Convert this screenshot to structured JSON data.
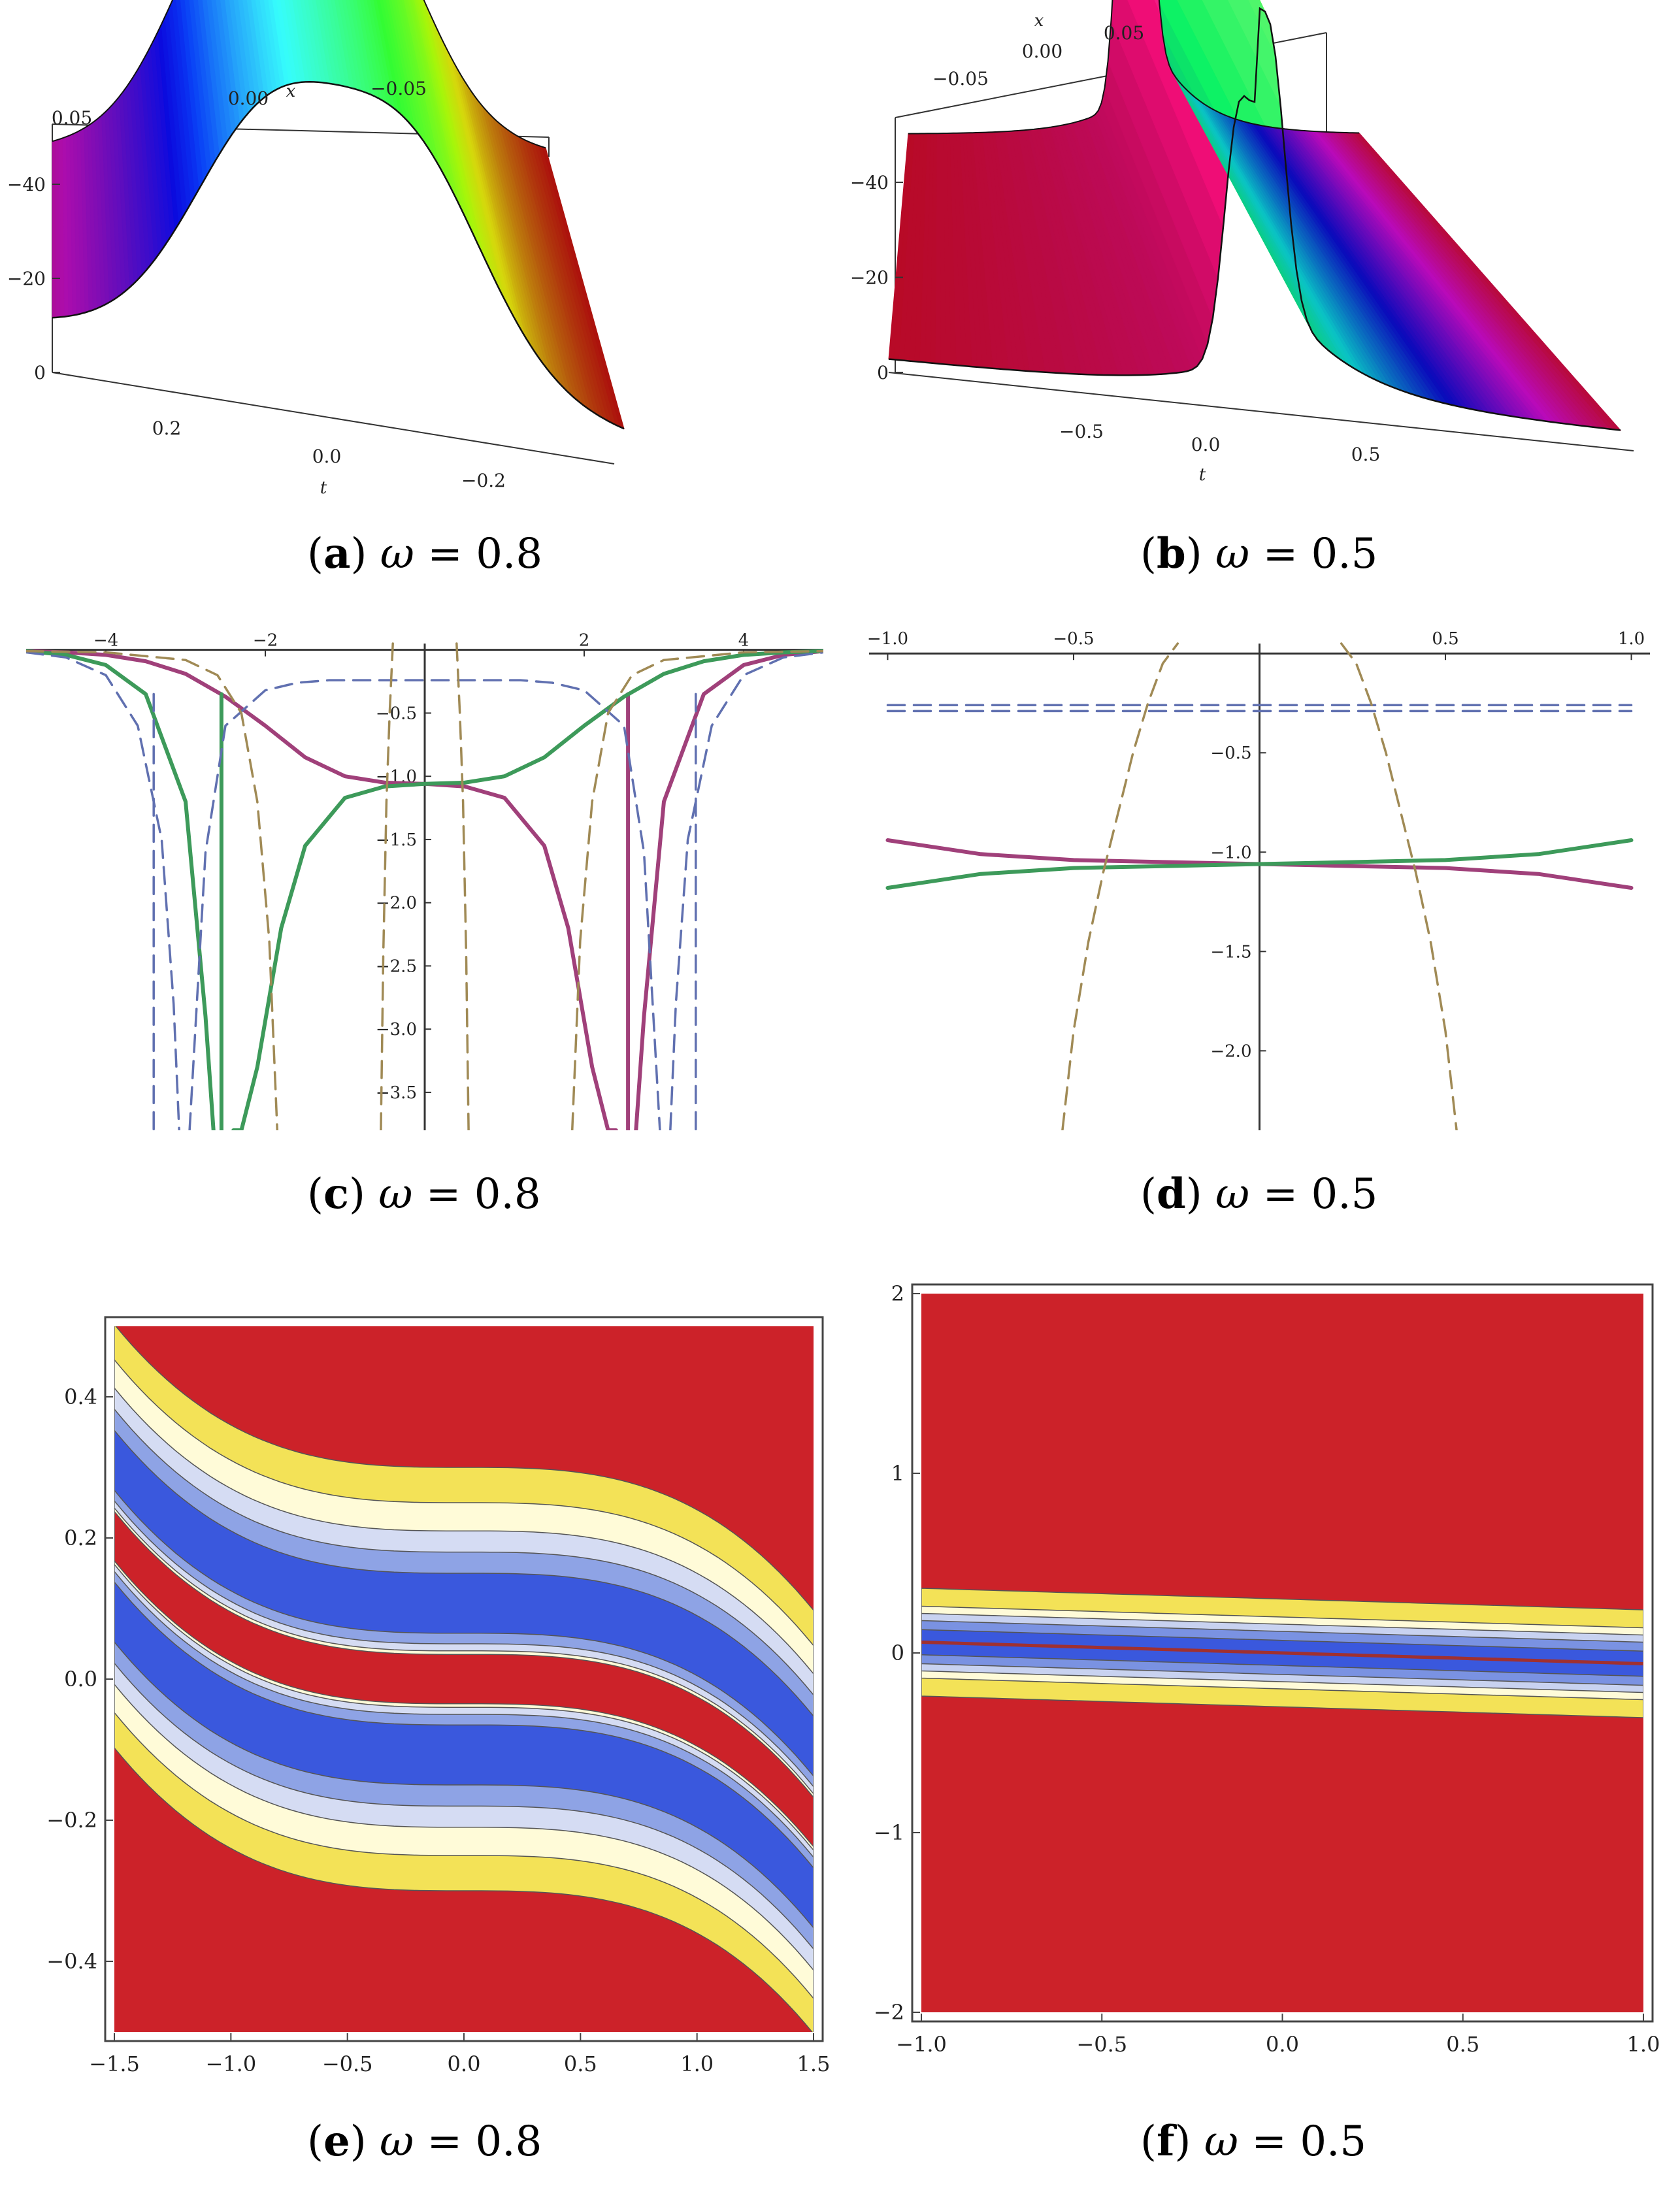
{
  "panels": [
    {
      "id": "a",
      "caption": {
        "letter": "a",
        "omega_symbol": "ω",
        "eq": "= 0.8"
      },
      "chart_data": {
        "type": "surface3d",
        "axis_x_label": "x",
        "axis_t_label": "t",
        "x_ticks": [
          "0.05",
          "0.00",
          "−0.05"
        ],
        "t_ticks": [
          "0.2",
          "0.0",
          "−0.2"
        ],
        "z_ticks": [
          "0",
          "−20",
          "−40"
        ],
        "x_range": [
          -0.05,
          0.05
        ],
        "t_range": [
          -0.3,
          0.3
        ],
        "z_range": [
          0,
          -50
        ],
        "profile": "double-hump",
        "peaks_t": [
          0.07,
          -0.07
        ],
        "colormap": "rainbow"
      }
    },
    {
      "id": "b",
      "caption": {
        "letter": "b",
        "omega_symbol": "ω",
        "eq": "= 0.5"
      },
      "chart_data": {
        "type": "surface3d",
        "axis_x_label": "x",
        "axis_t_label": "t",
        "x_ticks": [
          "−0.05",
          "0.00",
          "0.05"
        ],
        "t_ticks": [
          "−0.5",
          "0.0",
          "0.5"
        ],
        "z_ticks": [
          "0",
          "−20",
          "−40"
        ],
        "x_range": [
          -0.05,
          0.05
        ],
        "t_range": [
          -0.9,
          0.9
        ],
        "z_range": [
          0,
          -55
        ],
        "profile": "double-hump-sharp",
        "peaks_t": [
          -0.03,
          0.03
        ],
        "colormap": "hue"
      }
    },
    {
      "id": "c",
      "caption": {
        "letter": "c",
        "omega_symbol": "ω",
        "eq": "= 0.8"
      },
      "chart_data": {
        "type": "line",
        "xlim": [
          -5,
          5
        ],
        "ylim": [
          -3.8,
          0.05
        ],
        "x_ticks": [
          -4,
          -2,
          2,
          4
        ],
        "x_tick_labels": [
          "−4",
          "−2",
          "2",
          "4"
        ],
        "y_ticks": [
          -0.5,
          -1.0,
          -1.5,
          -2.0,
          -2.5,
          -3.0,
          -3.5
        ],
        "y_tick_labels": [
          "−0.5",
          "−1.0",
          "−1.5",
          "−2.0",
          "−2.5",
          "−3.0",
          "−3.5"
        ],
        "series": [
          {
            "color": "#a0407a",
            "dash": "solid",
            "x": [
              -5,
              -4.5,
              -4,
              -3.5,
              -3,
              -2.5,
              -2,
              -1.5,
              -1,
              -0.5,
              0,
              0.5,
              1,
              1.5,
              1.8,
              2.1,
              2.3,
              2.4
            ],
            "y": [
              -0.01,
              -0.02,
              -0.04,
              -0.09,
              -0.19,
              -0.37,
              -0.6,
              -0.85,
              -1.0,
              -1.05,
              -1.06,
              -1.08,
              -1.17,
              -1.55,
              -2.2,
              -3.3,
              -3.8,
              -3.8
            ]
          },
          {
            "color": "#a0407a",
            "dash": "solid",
            "x": [
              2.65,
              2.75,
              3.0,
              3.5,
              4,
              4.5,
              5
            ],
            "y": [
              -3.8,
              -2.9,
              -1.2,
              -0.35,
              -0.12,
              -0.04,
              -0.01
            ]
          },
          {
            "color": "#a0407a",
            "dash": "solid",
            "x": [
              2.55,
              2.55
            ],
            "y": [
              -0.35,
              -3.8
            ]
          },
          {
            "color": "#3d9a5a",
            "dash": "solid",
            "x": [
              5,
              4.5,
              4,
              3.5,
              3,
              2.5,
              2,
              1.5,
              1,
              0.5,
              0,
              -0.5,
              -1,
              -1.5,
              -1.8,
              -2.1,
              -2.3,
              -2.4
            ],
            "y": [
              -0.01,
              -0.02,
              -0.04,
              -0.09,
              -0.19,
              -0.37,
              -0.6,
              -0.85,
              -1.0,
              -1.05,
              -1.06,
              -1.08,
              -1.17,
              -1.55,
              -2.2,
              -3.3,
              -3.8,
              -3.8
            ]
          },
          {
            "color": "#3d9a5a",
            "dash": "solid",
            "x": [
              -2.65,
              -2.75,
              -3.0,
              -3.5,
              -4,
              -4.5,
              -5
            ],
            "y": [
              -3.8,
              -2.9,
              -1.2,
              -0.35,
              -0.12,
              -0.04,
              -0.01
            ]
          },
          {
            "color": "#3d9a5a",
            "dash": "solid",
            "x": [
              -2.55,
              -2.55
            ],
            "y": [
              -0.35,
              -3.8
            ]
          },
          {
            "color": "#6070b0",
            "dash": "dashed",
            "x": [
              -5,
              -4.5,
              -4.0,
              -3.6,
              -3.3,
              -3.15,
              -3.08
            ],
            "y": [
              -0.02,
              -0.06,
              -0.2,
              -0.6,
              -1.5,
              -2.8,
              -3.8
            ]
          },
          {
            "color": "#6070b0",
            "dash": "dashed",
            "x": [
              -2.95,
              -2.75,
              -2.5,
              -2.0,
              -1.6,
              -1.2,
              -0.8,
              -0.3,
              0,
              0.3,
              0.8,
              1.2,
              1.6,
              2.0,
              2.5,
              2.75,
              2.95
            ],
            "y": [
              -3.8,
              -1.6,
              -0.6,
              -0.32,
              -0.26,
              -0.24,
              -0.24,
              -0.24,
              -0.24,
              -0.24,
              -0.24,
              -0.24,
              -0.26,
              -0.32,
              -0.6,
              -1.6,
              -3.8
            ]
          },
          {
            "color": "#6070b0",
            "dash": "dashed",
            "x": [
              3.08,
              3.15,
              3.3,
              3.6,
              4.0,
              4.5,
              5
            ],
            "y": [
              -3.8,
              -2.8,
              -1.5,
              -0.6,
              -0.2,
              -0.06,
              -0.02
            ]
          },
          {
            "color": "#6070b0",
            "dash": "dashed",
            "x": [
              -3.4,
              -3.4
            ],
            "y": [
              -0.35,
              -3.8
            ]
          },
          {
            "color": "#6070b0",
            "dash": "dashed",
            "x": [
              3.4,
              3.4
            ],
            "y": [
              -0.35,
              -3.8
            ]
          },
          {
            "color": "#a08a55",
            "dash": "dashed",
            "x": [
              -5,
              -4,
              -3,
              -2.6,
              -2.3,
              -2.1,
              -1.95,
              -1.85
            ],
            "y": [
              -0.01,
              -0.02,
              -0.08,
              -0.2,
              -0.5,
              -1.2,
              -2.3,
              -3.8
            ]
          },
          {
            "color": "#a08a55",
            "dash": "dashed",
            "x": [
              -0.55,
              -0.52,
              -0.48,
              -0.44,
              -0.4
            ],
            "y": [
              -3.8,
              -2.4,
              -1.2,
              -0.5,
              0.05
            ]
          },
          {
            "color": "#a08a55",
            "dash": "dashed",
            "x": [
              0.4,
              0.44,
              0.48,
              0.52,
              0.55
            ],
            "y": [
              0.05,
              -0.5,
              -1.2,
              -2.4,
              -3.8
            ]
          },
          {
            "color": "#a08a55",
            "dash": "dashed",
            "x": [
              1.85,
              1.95,
              2.1,
              2.3,
              2.6,
              3,
              4,
              5
            ],
            "y": [
              -3.8,
              -2.3,
              -1.2,
              -0.5,
              -0.2,
              -0.08,
              -0.02,
              -0.01
            ]
          }
        ]
      }
    },
    {
      "id": "d",
      "caption": {
        "letter": "d",
        "omega_symbol": "ω",
        "eq": "= 0.5"
      },
      "chart_data": {
        "type": "line",
        "xlim": [
          -1.05,
          1.05
        ],
        "ylim": [
          -2.4,
          0.05
        ],
        "x_ticks": [
          -1.0,
          -0.5,
          0.5,
          1.0
        ],
        "x_tick_labels": [
          "−1.0",
          "−0.5",
          "0.5",
          "1.0"
        ],
        "y_ticks": [
          -0.5,
          -1.0,
          -1.5,
          -2.0
        ],
        "y_tick_labels": [
          "−0.5",
          "−1.0",
          "−1.5",
          "−2.0"
        ],
        "series": [
          {
            "color": "#6070b0",
            "dash": "dashed",
            "x": [
              -1.0,
              -0.5,
              0,
              0.5,
              1.0
            ],
            "y": [
              -0.26,
              -0.26,
              -0.26,
              -0.26,
              -0.26
            ]
          },
          {
            "color": "#6070b0",
            "dash": "dashed",
            "x": [
              -1.0,
              -0.5,
              0,
              0.5,
              1.0
            ],
            "y": [
              -0.29,
              -0.29,
              -0.29,
              -0.29,
              -0.29
            ]
          },
          {
            "color": "#a0407a",
            "dash": "solid",
            "x": [
              -1.0,
              -0.75,
              -0.5,
              -0.25,
              0,
              0.25,
              0.5,
              0.75,
              1.0
            ],
            "y": [
              -0.94,
              -1.01,
              -1.04,
              -1.05,
              -1.06,
              -1.07,
              -1.08,
              -1.11,
              -1.18
            ]
          },
          {
            "color": "#3d9a5a",
            "dash": "solid",
            "x": [
              -1.0,
              -0.75,
              -0.5,
              -0.25,
              0,
              0.25,
              0.5,
              0.75,
              1.0
            ],
            "y": [
              -1.18,
              -1.11,
              -1.08,
              -1.07,
              -1.06,
              -1.05,
              -1.04,
              -1.01,
              -0.94
            ]
          },
          {
            "color": "#a08a55",
            "dash": "dashed",
            "x": [
              -0.53,
              -0.5,
              -0.46,
              -0.42,
              -0.38,
              -0.34,
              -0.3,
              -0.26,
              -0.22
            ],
            "y": [
              -2.4,
              -1.9,
              -1.45,
              -1.1,
              -0.8,
              -0.5,
              -0.25,
              -0.05,
              0.05
            ]
          },
          {
            "color": "#a08a55",
            "dash": "dashed",
            "x": [
              0.22,
              0.26,
              0.3,
              0.34,
              0.38,
              0.42,
              0.46,
              0.5,
              0.53
            ],
            "y": [
              0.05,
              -0.05,
              -0.25,
              -0.5,
              -0.8,
              -1.1,
              -1.45,
              -1.9,
              -2.4
            ]
          }
        ]
      }
    },
    {
      "id": "e",
      "caption": {
        "letter": "e",
        "omega_symbol": "ω",
        "eq": "= 0.8"
      },
      "chart_data": {
        "type": "contour",
        "xlim": [
          -1.5,
          1.5
        ],
        "ylim": [
          -0.5,
          0.5
        ],
        "x_ticks": [
          -1.5,
          -1.0,
          -0.5,
          0.0,
          0.5,
          1.0,
          1.5
        ],
        "x_tick_labels": [
          "−1.5",
          "−1.0",
          "−0.5",
          "0.0",
          "0.5",
          "1.0",
          "1.5"
        ],
        "y_ticks": [
          0.4,
          0.2,
          0.0,
          -0.2,
          -0.4
        ],
        "y_tick_labels": [
          "0.4",
          "0.2",
          "0.0",
          "−0.2",
          "−0.4"
        ],
        "center_curve": "y = -0.06*x^3",
        "band_half_width": 0.16,
        "inner_gap": 0.03,
        "background": "#cc2229",
        "levels": [
          "#f3e257",
          "#fffbd8",
          "#d5dcf3",
          "#8ea3e5",
          "#3a58dd"
        ]
      }
    },
    {
      "id": "f",
      "caption": {
        "letter": "f",
        "omega_symbol": "ω",
        "eq": "= 0.5"
      },
      "chart_data": {
        "type": "contour",
        "xlim": [
          -1.0,
          1.0
        ],
        "ylim": [
          -2.0,
          2.0
        ],
        "x_ticks": [
          -1.0,
          -0.5,
          0.0,
          0.5,
          1.0
        ],
        "x_tick_labels": [
          "−1.0",
          "−0.5",
          "0.0",
          "0.5",
          "1.0"
        ],
        "y_ticks": [
          2,
          1,
          0,
          -1,
          -2
        ],
        "y_tick_labels": [
          "2",
          "1",
          "0",
          "−1",
          "−2"
        ],
        "center_curve": "y = -0.06*x",
        "band_half_width": 0.3,
        "background": "#cc2229",
        "levels": [
          "#f3e257",
          "#fffbd8",
          "#c8d2f0",
          "#7a92e2",
          "#3a58dd"
        ]
      }
    }
  ]
}
